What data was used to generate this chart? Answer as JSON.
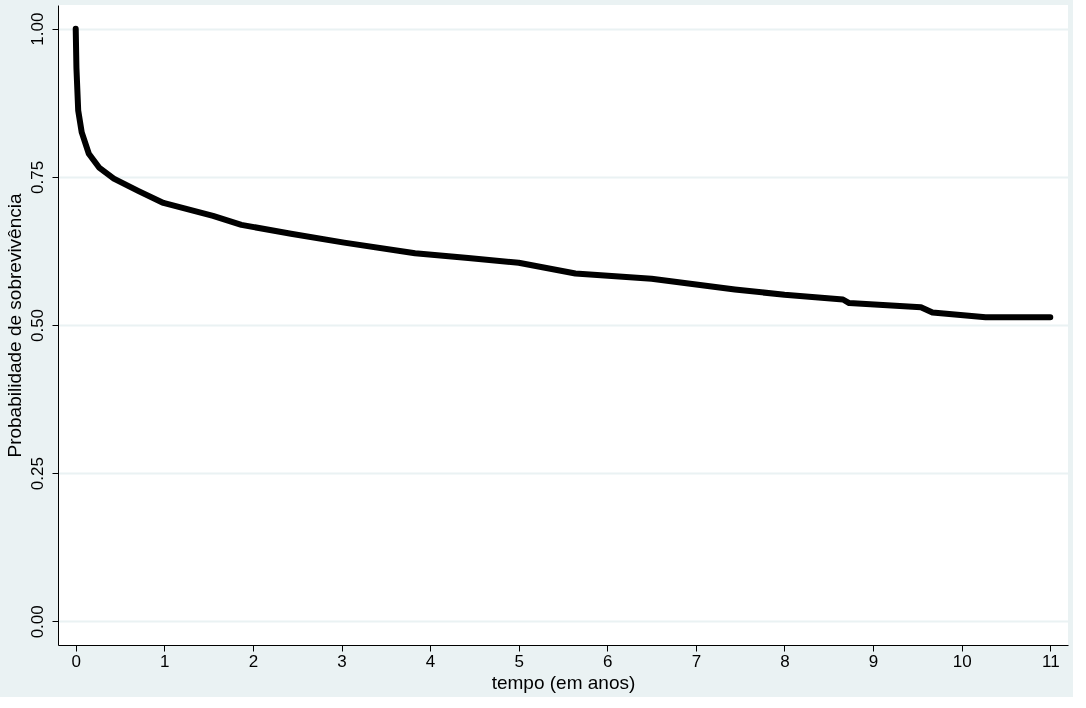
{
  "chart_data": {
    "type": "line",
    "xlabel": "tempo (em anos)",
    "ylabel": "Probabilidade de sobrevivência",
    "x": [
      0,
      0.008,
      0.028,
      0.068,
      0.148,
      0.268,
      0.43,
      0.71,
      0.99,
      1.55,
      1.87,
      2.43,
      3.03,
      3.83,
      4.43,
      5.0,
      5.64,
      6.5,
      7.44,
      8.0,
      8.66,
      8.73,
      9.54,
      9.67,
      10.27,
      11.0
    ],
    "series": [
      {
        "color": "#000000",
        "values": [
          1.0,
          0.934,
          0.862,
          0.825,
          0.789,
          0.765,
          0.747,
          0.726,
          0.706,
          0.684,
          0.669,
          0.654,
          0.639,
          0.621,
          0.613,
          0.605,
          0.587,
          0.578,
          0.56,
          0.551,
          0.543,
          0.537,
          0.53,
          0.521,
          0.513,
          0.513
        ]
      }
    ],
    "xlim": [
      -0.2,
      11.2
    ],
    "xticks": [
      0,
      1,
      2,
      3,
      4,
      5,
      6,
      7,
      8,
      9,
      10,
      11
    ],
    "ylim": [
      -0.04,
      1.04
    ],
    "yticks": [
      {
        "value": 0,
        "label": "0.00"
      },
      {
        "value": 0.25,
        "label": "0.25"
      },
      {
        "value": 0.5,
        "label": "0.50"
      },
      {
        "value": 0.75,
        "label": "0.75"
      },
      {
        "value": 1,
        "label": "1.00"
      }
    ],
    "grid": "y",
    "legend": false,
    "marker": "none",
    "line_style": "solid"
  }
}
